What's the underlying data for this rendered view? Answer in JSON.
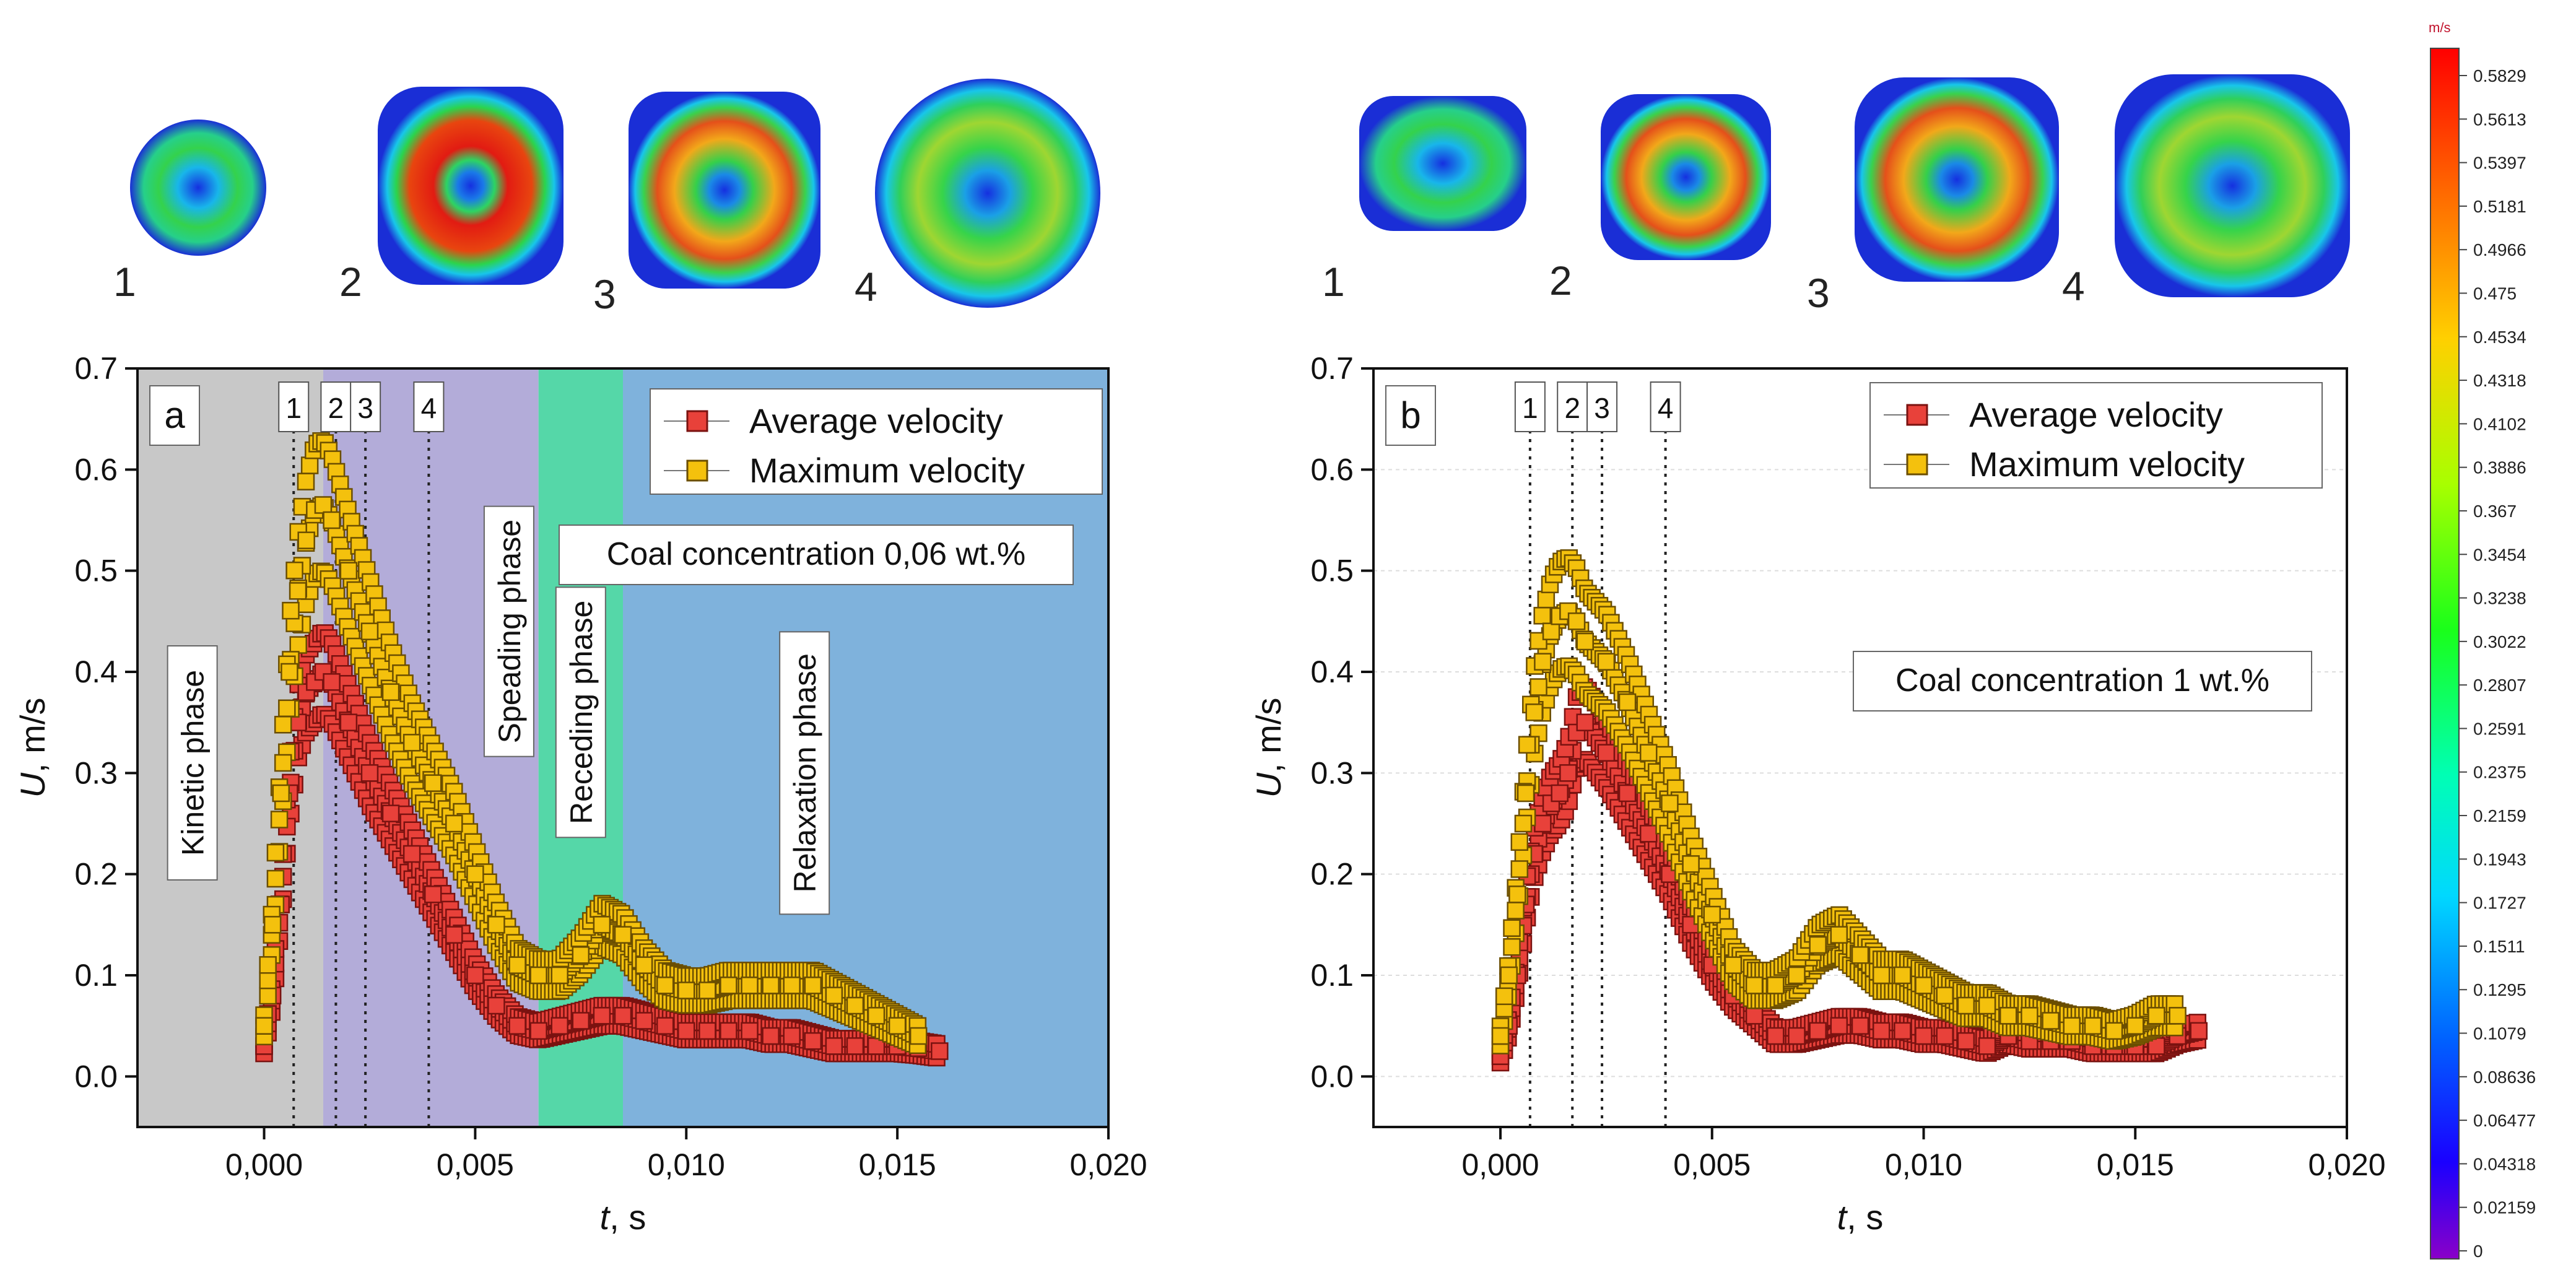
{
  "colors": {
    "kinetic": "#c8c8c8",
    "spreading": "#b3acd9",
    "receding": "#55d7a8",
    "relaxation": "#7fb2dc",
    "avg_fill": "#e8413a",
    "avg_stroke": "#7a1210",
    "max_fill": "#f4c10d",
    "max_stroke": "#6b4e00",
    "droplet_outer": "#1a2ed6",
    "droplet_mid": "#2bd44c",
    "droplet_hot": "#e01b14"
  },
  "snapshots": {
    "a": [
      "1",
      "2",
      "3",
      "4"
    ],
    "b": [
      "1",
      "2",
      "3",
      "4"
    ]
  },
  "colorbar": {
    "unit": "m/s",
    "ticks": [
      "0.5829",
      "0.5613",
      "0.5397",
      "0.5181",
      "0.4966",
      "0.475",
      "0.4534",
      "0.4318",
      "0.4102",
      "0.3886",
      "0.367",
      "0.3454",
      "0.3238",
      "0.3022",
      "0.2807",
      "0.2591",
      "0.2375",
      "0.2159",
      "0.1943",
      "0.1727",
      "0.1511",
      "0.1295",
      "0.1079",
      "0.08636",
      "0.06477",
      "0.04318",
      "0.02159",
      "0"
    ]
  },
  "chart_data": [
    {
      "panel": "a",
      "type": "scatter",
      "panel_label": "a",
      "xlabel_italic": "t",
      "xlabel_rest": ", s",
      "ylabel_italic": "U",
      "ylabel_rest": ", m/s",
      "xlim": [
        -0.003,
        0.02
      ],
      "ylim": [
        -0.05,
        0.7
      ],
      "x_ticks": [
        0.0,
        0.005,
        0.01,
        0.015,
        0.02
      ],
      "x_tick_labels": [
        "0,000",
        "0,005",
        "0,010",
        "0,015",
        "0,020"
      ],
      "y_ticks": [
        0.0,
        0.1,
        0.2,
        0.3,
        0.4,
        0.5,
        0.6,
        0.7
      ],
      "y_tick_labels": [
        "0.0",
        "0.1",
        "0.2",
        "0.3",
        "0.4",
        "0.5",
        "0.6",
        "0.7"
      ],
      "legend": [
        "Average velocity",
        "Maximum velocity"
      ],
      "annotation": "Coal concentration 0,06 wt.%",
      "phases": [
        {
          "name": "Kinetic phase",
          "x0": -0.003,
          "x1": 0.0014,
          "color_key": "kinetic",
          "label_x": -0.0017,
          "label_y": 0.31
        },
        {
          "name": "Speading phase",
          "x0": 0.0014,
          "x1": 0.0065,
          "color_key": "spreading",
          "label_x": 0.0058,
          "label_y": 0.44
        },
        {
          "name": "Receding phase",
          "x0": 0.0065,
          "x1": 0.0085,
          "color_key": "receding",
          "label_x": 0.0075,
          "label_y": 0.36
        },
        {
          "name": "Relaxation phase",
          "x0": 0.0085,
          "x1": 0.02,
          "color_key": "relaxation",
          "label_x": 0.0128,
          "label_y": 0.3
        }
      ],
      "markers": [
        {
          "label": "1",
          "x": 0.0007
        },
        {
          "label": "2",
          "x": 0.0017
        },
        {
          "label": "3",
          "x": 0.0024
        },
        {
          "label": "4",
          "x": 0.0039
        }
      ],
      "series": [
        {
          "name": "Average velocity",
          "x": [
            0.0,
            0.0002,
            0.0004,
            0.0006,
            0.0008,
            0.001,
            0.0012,
            0.0014,
            0.0016,
            0.002,
            0.0025,
            0.003,
            0.0035,
            0.004,
            0.0045,
            0.005,
            0.0055,
            0.006,
            0.0065,
            0.007,
            0.0075,
            0.008,
            0.0085,
            0.009,
            0.0095,
            0.01,
            0.0105,
            0.011,
            0.0115,
            0.012,
            0.0125,
            0.013,
            0.0135,
            0.014,
            0.0145,
            0.015,
            0.0155,
            0.016
          ],
          "values": [
            0.03,
            0.08,
            0.17,
            0.28,
            0.35,
            0.38,
            0.39,
            0.4,
            0.39,
            0.35,
            0.3,
            0.26,
            0.22,
            0.18,
            0.14,
            0.1,
            0.07,
            0.05,
            0.045,
            0.05,
            0.055,
            0.06,
            0.06,
            0.055,
            0.05,
            0.045,
            0.045,
            0.045,
            0.045,
            0.04,
            0.04,
            0.035,
            0.03,
            0.03,
            0.03,
            0.03,
            0.028,
            0.025
          ]
        },
        {
          "name": "Maximum velocity",
          "x": [
            0.0,
            0.0002,
            0.0004,
            0.0006,
            0.0008,
            0.001,
            0.0012,
            0.0014,
            0.0016,
            0.002,
            0.0025,
            0.003,
            0.0035,
            0.004,
            0.0045,
            0.005,
            0.0055,
            0.006,
            0.0065,
            0.007,
            0.0075,
            0.008,
            0.0085,
            0.009,
            0.0095,
            0.01,
            0.0105,
            0.011,
            0.0115,
            0.012,
            0.0125,
            0.013,
            0.0135,
            0.014,
            0.0145,
            0.015,
            0.0155
          ],
          "values": [
            0.05,
            0.15,
            0.28,
            0.4,
            0.48,
            0.53,
            0.56,
            0.565,
            0.55,
            0.5,
            0.44,
            0.38,
            0.33,
            0.29,
            0.25,
            0.2,
            0.15,
            0.11,
            0.1,
            0.1,
            0.12,
            0.15,
            0.14,
            0.11,
            0.09,
            0.085,
            0.085,
            0.09,
            0.09,
            0.09,
            0.09,
            0.09,
            0.08,
            0.07,
            0.06,
            0.05,
            0.04
          ]
        }
      ]
    },
    {
      "panel": "b",
      "type": "scatter",
      "panel_label": "b",
      "xlabel_italic": "t",
      "xlabel_rest": ", s",
      "ylabel_italic": "U",
      "ylabel_rest": ", m/s",
      "xlim": [
        -0.003,
        0.02
      ],
      "ylim": [
        -0.05,
        0.7
      ],
      "x_ticks": [
        0.0,
        0.005,
        0.01,
        0.015,
        0.02
      ],
      "x_tick_labels": [
        "0,000",
        "0,005",
        "0,010",
        "0,015",
        "0,020"
      ],
      "y_ticks": [
        0.0,
        0.1,
        0.2,
        0.3,
        0.4,
        0.5,
        0.6,
        0.7
      ],
      "y_tick_labels": [
        "0.0",
        "0.1",
        "0.2",
        "0.3",
        "0.4",
        "0.5",
        "0.6",
        "0.7"
      ],
      "legend": [
        "Average velocity",
        "Maximum velocity"
      ],
      "annotation": "Coal concentration 1 wt.%",
      "phases": [],
      "markers": [
        {
          "label": "1",
          "x": 0.0007
        },
        {
          "label": "2",
          "x": 0.0017
        },
        {
          "label": "3",
          "x": 0.0024
        },
        {
          "label": "4",
          "x": 0.0039
        }
      ],
      "series": [
        {
          "name": "Average velocity",
          "x": [
            0.0,
            0.0002,
            0.0004,
            0.0006,
            0.0008,
            0.001,
            0.0012,
            0.0014,
            0.0016,
            0.0018,
            0.002,
            0.0025,
            0.003,
            0.0035,
            0.004,
            0.0045,
            0.005,
            0.0055,
            0.006,
            0.0065,
            0.007,
            0.0075,
            0.008,
            0.0085,
            0.009,
            0.0095,
            0.01,
            0.0105,
            0.011,
            0.0115,
            0.012,
            0.0125,
            0.013,
            0.0135,
            0.014,
            0.0145,
            0.015,
            0.0155,
            0.016,
            0.0165
          ],
          "values": [
            0.02,
            0.05,
            0.1,
            0.17,
            0.22,
            0.25,
            0.27,
            0.28,
            0.3,
            0.34,
            0.35,
            0.32,
            0.28,
            0.24,
            0.2,
            0.15,
            0.11,
            0.08,
            0.06,
            0.04,
            0.04,
            0.045,
            0.05,
            0.05,
            0.045,
            0.045,
            0.04,
            0.04,
            0.035,
            0.03,
            0.04,
            0.035,
            0.035,
            0.035,
            0.03,
            0.03,
            0.03,
            0.03,
            0.04,
            0.045
          ]
        },
        {
          "name": "Maximum velocity",
          "x": [
            0.0,
            0.0002,
            0.0004,
            0.0006,
            0.0008,
            0.001,
            0.0012,
            0.0014,
            0.0016,
            0.0018,
            0.002,
            0.0025,
            0.003,
            0.0035,
            0.004,
            0.0045,
            0.005,
            0.0055,
            0.006,
            0.0065,
            0.007,
            0.0075,
            0.008,
            0.0085,
            0.009,
            0.0095,
            0.01,
            0.0105,
            0.011,
            0.0115,
            0.012,
            0.0125,
            0.013,
            0.0135,
            0.014,
            0.0145,
            0.015,
            0.0155,
            0.016
          ],
          "values": [
            0.04,
            0.1,
            0.18,
            0.28,
            0.36,
            0.41,
            0.44,
            0.455,
            0.46,
            0.45,
            0.43,
            0.41,
            0.37,
            0.32,
            0.27,
            0.21,
            0.16,
            0.11,
            0.09,
            0.09,
            0.1,
            0.13,
            0.14,
            0.12,
            0.1,
            0.1,
            0.09,
            0.08,
            0.07,
            0.07,
            0.06,
            0.06,
            0.055,
            0.05,
            0.05,
            0.045,
            0.05,
            0.06,
            0.06
          ]
        }
      ]
    }
  ]
}
